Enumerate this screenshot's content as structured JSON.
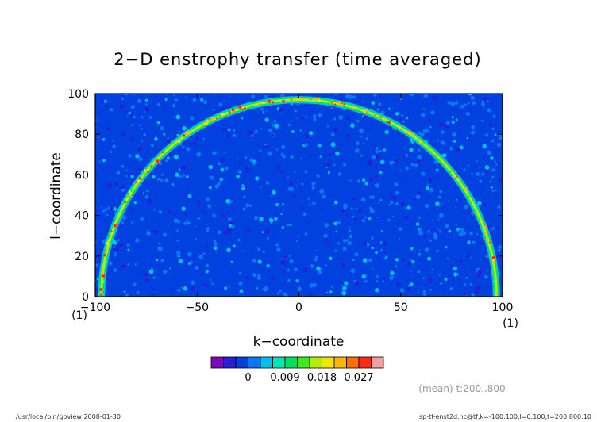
{
  "chart_data": {
    "type": "heatmap",
    "title": "2−D enstrophy transfer (time averaged)",
    "xlabel": "k−coordinate",
    "ylabel": "l−coordinate",
    "xlim": [
      -100,
      100
    ],
    "ylim": [
      0,
      100
    ],
    "x_ticks": [
      -100,
      -50,
      0,
      50,
      100
    ],
    "y_ticks": [
      0,
      20,
      40,
      60,
      80,
      100
    ],
    "x_tick_labels": [
      "−100",
      "−50",
      "0",
      "50",
      "100"
    ],
    "y_tick_labels": [
      "0",
      "20",
      "40",
      "60",
      "80",
      "100"
    ],
    "x_unit_label": "(1)",
    "y_unit_label": "(1)",
    "ring_radius": 97,
    "colorbar": {
      "levels": [
        -0.0045,
        -0.003,
        -0.0015,
        0,
        0.003,
        0.006,
        0.009,
        0.012,
        0.015,
        0.018,
        0.021,
        0.024,
        0.027,
        0.03
      ],
      "tick_values": [
        0,
        0.009,
        0.018,
        0.027
      ],
      "tick_labels": [
        "0",
        "0.009",
        "0.018",
        "0.027"
      ],
      "colors": [
        "#7a0ab8",
        "#2a1fd1",
        "#0041e0",
        "#0a78f0",
        "#00c0f0",
        "#00e6b8",
        "#00e060",
        "#46e61e",
        "#b4ec10",
        "#f0e600",
        "#ffb400",
        "#ff6e00",
        "#ff2a10",
        "#f0a0a0"
      ]
    }
  },
  "annotation": {
    "mean_label": "(mean) t:200..800"
  },
  "footer": {
    "left": "/usr/local/bin/gpview   2008-01-30",
    "right": "sp-tf-enst2d.nc@tf,k=-100:100,l=0:100,t=200:800:10"
  }
}
